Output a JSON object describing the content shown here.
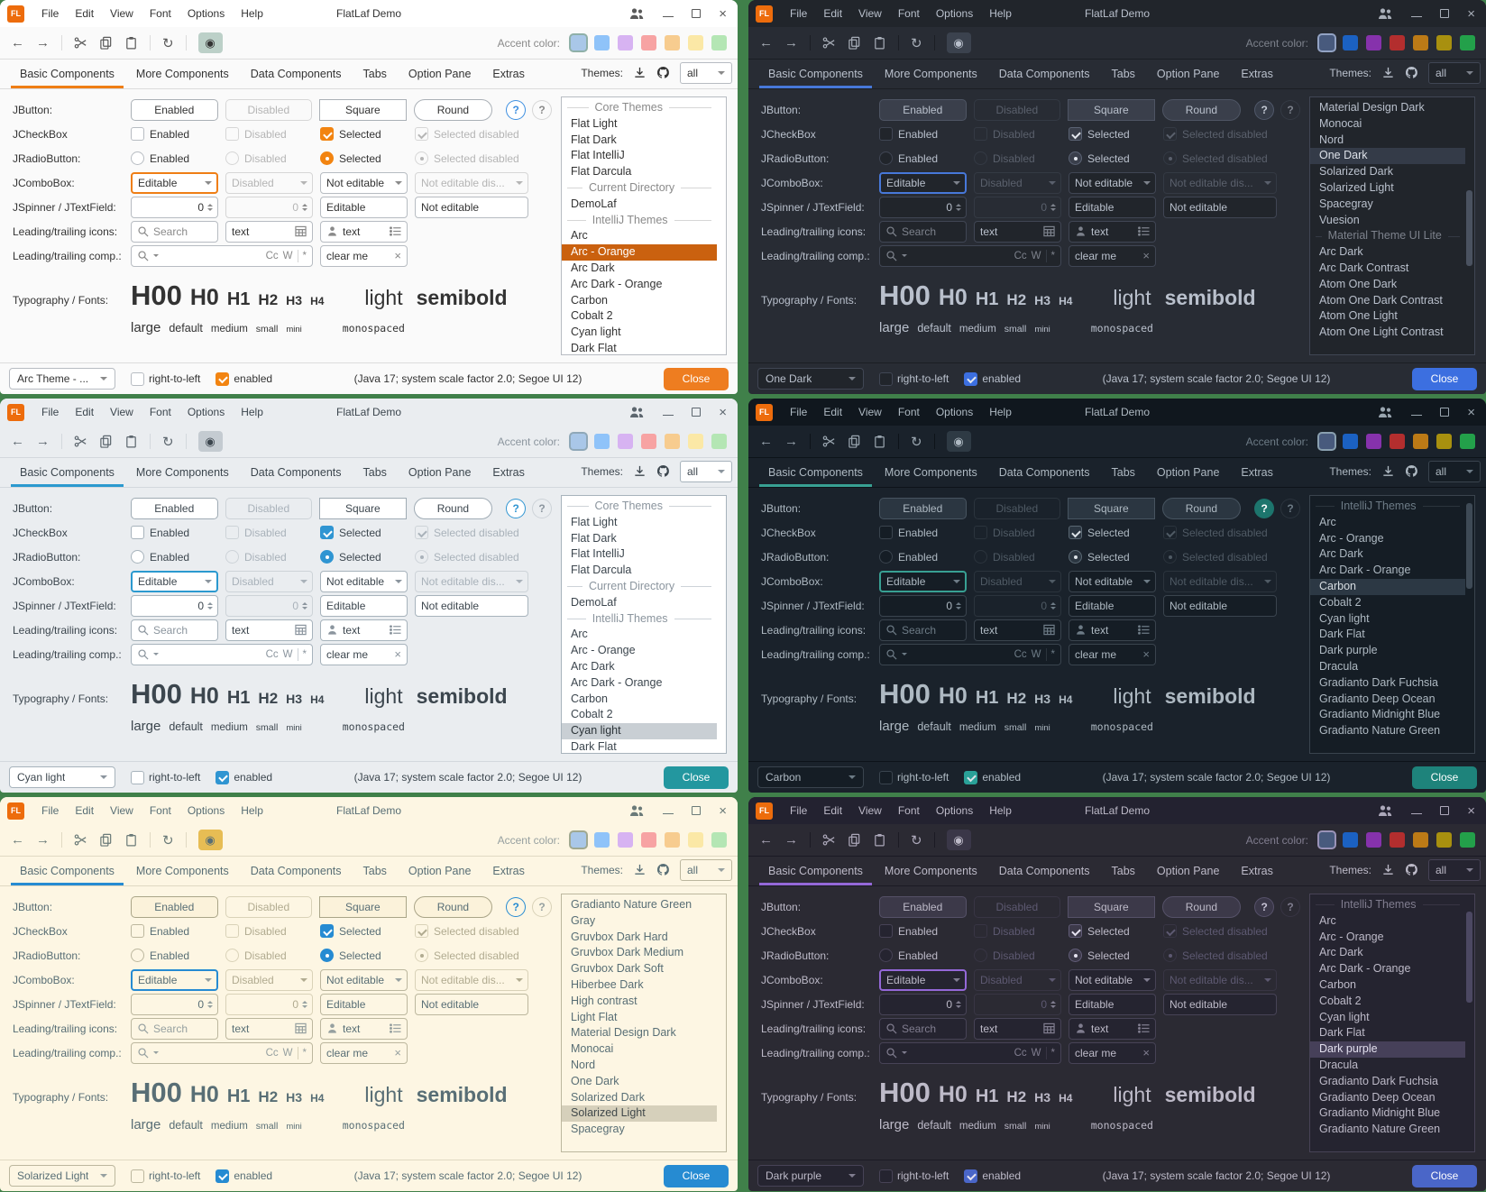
{
  "shared": {
    "titlebar": {
      "logo": "FL",
      "title": "FlatLaf Demo",
      "menus": [
        "File",
        "Edit",
        "View",
        "Font",
        "Options",
        "Help"
      ]
    },
    "toolbar": {
      "accent_label": "Accent color:"
    },
    "tabbar": {
      "tabs": [
        "Basic Components",
        "More Components",
        "Data Components",
        "Tabs",
        "Option Pane",
        "Extras"
      ],
      "themes_label": "Themes:",
      "filter_value": "all"
    },
    "rows": {
      "labels": [
        "JButton:",
        "JCheckBox",
        "JRadioButton:",
        "JComboBox:",
        "JSpinner / JTextField:",
        "Leading/trailing icons:",
        "Leading/trailing comp.:",
        "Typography / Fonts:"
      ],
      "jbutton": [
        "Enabled",
        "Disabled",
        "Square",
        "Round",
        "?",
        "?"
      ],
      "jcheckbox": [
        "Enabled",
        "Disabled",
        "Selected",
        "Selected disabled"
      ],
      "jradiobutton": [
        "Enabled",
        "Disabled",
        "Selected",
        "Selected disabled"
      ],
      "jcombobox": [
        "Editable",
        "Disabled",
        "Not editable",
        "Not editable dis..."
      ],
      "jspinner": [
        "0",
        "0",
        "Editable",
        "Not editable"
      ],
      "icons_row": {
        "search_placeholder": "Search",
        "text1": "text",
        "text2": "text"
      },
      "comp_row": {
        "match_case": "Cc",
        "whole_word": "W",
        "regex": "*",
        "clear_value": "clear me"
      }
    },
    "typography": {
      "headings": [
        "H00",
        "H0",
        "H1",
        "H2",
        "H3",
        "H4"
      ],
      "light": "light",
      "semibold": "semibold",
      "sizes": [
        "large",
        "default",
        "medium",
        "small",
        "mini"
      ],
      "monospaced": "monospaced"
    },
    "statusbar": {
      "rtl_label": "right-to-left",
      "enabled_label": "enabled",
      "status": "(Java 17;  system scale factor 2.0; Segoe UI 12)",
      "close_label": "Close"
    }
  },
  "windows": [
    {
      "theme_dropdown": "Arc Theme - ...",
      "accent_swatches": [
        "#a9c7e8",
        "#8fc3f9",
        "#d7b3f2",
        "#f7a3a3",
        "#f7cc8f",
        "#fbe8a6",
        "#b4e6b4"
      ],
      "scrollbar": null,
      "themes_list": [
        {
          "sep": true,
          "label": "Core Themes"
        },
        {
          "label": "Flat Light"
        },
        {
          "label": "Flat Dark"
        },
        {
          "label": "Flat IntelliJ"
        },
        {
          "label": "Flat Darcula"
        },
        {
          "sep": true,
          "label": "Current Directory"
        },
        {
          "label": "DemoLaf"
        },
        {
          "sep": true,
          "label": "IntelliJ Themes"
        },
        {
          "label": "Arc"
        },
        {
          "label": "Arc - Orange",
          "selected": true
        },
        {
          "label": "Arc Dark"
        },
        {
          "label": "Arc Dark - Orange"
        },
        {
          "label": "Carbon"
        },
        {
          "label": "Cobalt 2"
        },
        {
          "label": "Cyan light"
        },
        {
          "label": "Dark Flat"
        }
      ],
      "colors": {
        "frame": "#ffffff",
        "bg": "#fafafa",
        "fg": "#333333",
        "muted": "#8a8a8a",
        "border": "#dcdcdc",
        "field_bg": "#ffffff",
        "field_border": "#b7bcc2",
        "dis_border": "#d6d6d6",
        "disabled_fg": "#b5b5b5",
        "accent": "#ef7e15",
        "btn_bg": "#ffffff",
        "btn_border": "#aab0b6",
        "list_bg": "#ffffff",
        "sel_bg": "#ca610f",
        "sel_fg": "#ffffff",
        "close_bg": "#ee7d20",
        "close_fg": "#ffffff",
        "eye_bg": "#bcd0c8",
        "scroll_thumb": "#dadada",
        "check_bg": "#f28411",
        "check_mark": "#ffffff",
        "check_border": "#f28411",
        "swatch_sel_border": "#8fb0a8",
        "help_fg": "#3d8fe0",
        "help_border": "#3d8fe0",
        "help_bg": "#ffffff",
        "status_check": "#f28411",
        "tool_fg": "#5a5a5a"
      }
    },
    {
      "theme_dropdown": "One Dark",
      "accent_swatches": [
        "#485a7d",
        "#1b61c2",
        "#8632ac",
        "#b32e2e",
        "#bc7a16",
        "#a8900f",
        "#23a04a"
      ],
      "scrollbar": {
        "top_pct": 36,
        "height_pct": 30
      },
      "themes_list": [
        {
          "label": "Material Design Dark"
        },
        {
          "label": "Monocai"
        },
        {
          "label": "Nord"
        },
        {
          "label": "One Dark",
          "selected": true
        },
        {
          "label": "Solarized Dark"
        },
        {
          "label": "Solarized Light"
        },
        {
          "label": "Spacegray"
        },
        {
          "label": "Vuesion"
        },
        {
          "sep": true,
          "label": "Material Theme UI Lite"
        },
        {
          "label": "Arc Dark"
        },
        {
          "label": "Arc Dark Contrast"
        },
        {
          "label": "Atom One Dark"
        },
        {
          "label": "Atom One Dark Contrast"
        },
        {
          "label": "Atom One Light"
        },
        {
          "label": "Atom One Light Contrast"
        }
      ],
      "colors": {
        "frame": "#21252b",
        "bg": "#282c34",
        "fg": "#b9c0cc",
        "muted": "#7d828c",
        "border": "#1b1e24",
        "field_bg": "#21252b",
        "field_border": "#404654",
        "dis_border": "#343a44",
        "disabled_fg": "#5a606c",
        "accent": "#4778d9",
        "btn_bg": "#3a3f4b",
        "btn_border": "#4e5564",
        "list_bg": "#21252b",
        "sel_bg": "#343b48",
        "sel_fg": "#dde1e8",
        "close_bg": "#3c6fe0",
        "close_fg": "#ffffff",
        "eye_bg": "#3b424e",
        "scroll_thumb": "#4a5260",
        "check_bg": "#3a3f4b",
        "check_mark": "#e4e8ee",
        "check_border": "#5b6374",
        "swatch_sel_border": "#93a3c4",
        "help_fg": "#c3c9d4",
        "help_border": "#50586a",
        "help_bg": "#363c48",
        "status_check": "#3c6fe0",
        "tool_fg": "#a8aeb8"
      }
    },
    {
      "theme_dropdown": "Cyan light",
      "accent_swatches": [
        "#a9c7e8",
        "#8fc3f9",
        "#d7b3f2",
        "#f7a3a3",
        "#f7cc8f",
        "#fbe8a6",
        "#b4e6b4"
      ],
      "scrollbar": null,
      "themes_list": [
        {
          "sep": true,
          "label": "Core Themes"
        },
        {
          "label": "Flat Light"
        },
        {
          "label": "Flat Dark"
        },
        {
          "label": "Flat IntelliJ"
        },
        {
          "label": "Flat Darcula"
        },
        {
          "sep": true,
          "label": "Current Directory"
        },
        {
          "label": "DemoLaf"
        },
        {
          "sep": true,
          "label": "IntelliJ Themes"
        },
        {
          "label": "Arc"
        },
        {
          "label": "Arc - Orange"
        },
        {
          "label": "Arc Dark"
        },
        {
          "label": "Arc Dark - Orange"
        },
        {
          "label": "Carbon"
        },
        {
          "label": "Cobalt 2"
        },
        {
          "label": "Cyan light",
          "selected": true
        },
        {
          "label": "Dark Flat"
        }
      ],
      "colors": {
        "frame": "#eaedf0",
        "bg": "#eaedf0",
        "fg": "#3c464e",
        "muted": "#8b959e",
        "border": "#d3d8dd",
        "field_bg": "#ffffff",
        "field_border": "#a7b3bc",
        "dis_border": "#cdd3d8",
        "disabled_fg": "#a9b2ba",
        "accent": "#2b99cf",
        "btn_bg": "#ffffff",
        "btn_border": "#9fabb4",
        "list_bg": "#ffffff",
        "sel_bg": "#c9cfd4",
        "sel_fg": "#2b3338",
        "close_bg": "#23979f",
        "close_fg": "#ffffff",
        "eye_bg": "#c4cbd1",
        "scroll_thumb": "#ccd2d7",
        "check_bg": "#2f95d2",
        "check_mark": "#ffffff",
        "check_border": "#2f95d2",
        "swatch_sel_border": "#8fa8b8",
        "help_fg": "#2f95d2",
        "help_border": "#2f95d2",
        "help_bg": "#ffffff",
        "status_check": "#2f95d2",
        "tool_fg": "#5c666e"
      }
    },
    {
      "theme_dropdown": "Carbon",
      "accent_swatches": [
        "#485a7d",
        "#1b61c2",
        "#8632ac",
        "#b32e2e",
        "#bc7a16",
        "#a8900f",
        "#23a04a"
      ],
      "scrollbar": {
        "top_pct": 2,
        "height_pct": 34
      },
      "themes_list": [
        {
          "sep": true,
          "label": "IntelliJ Themes"
        },
        {
          "label": "Arc"
        },
        {
          "label": "Arc - Orange"
        },
        {
          "label": "Arc Dark"
        },
        {
          "label": "Arc Dark - Orange"
        },
        {
          "label": "Carbon",
          "selected": true
        },
        {
          "label": "Cobalt 2"
        },
        {
          "label": "Cyan light"
        },
        {
          "label": "Dark Flat"
        },
        {
          "label": "Dark purple"
        },
        {
          "label": "Dracula"
        },
        {
          "label": "Gradianto Dark Fuchsia"
        },
        {
          "label": "Gradianto Deep Ocean"
        },
        {
          "label": "Gradianto Midnight Blue"
        },
        {
          "label": "Gradianto Nature Green"
        }
      ],
      "colors": {
        "frame": "#10171e",
        "bg": "#1a222b",
        "fg": "#aeb9c2",
        "muted": "#6d7b86",
        "border": "#0d1319",
        "field_bg": "#151d25",
        "field_border": "#3a444e",
        "dis_border": "#2b343d",
        "disabled_fg": "#4f5a64",
        "accent": "#38a093",
        "btn_bg": "#2b3641",
        "btn_border": "#475460",
        "list_bg": "#151d25",
        "sel_bg": "#2c3844",
        "sel_fg": "#d8dee3",
        "close_bg": "#1e837b",
        "close_fg": "#ffffff",
        "eye_bg": "#2e3a44",
        "scroll_thumb": "#3e4a56",
        "check_bg": "#2b3641",
        "check_mark": "#dde3e8",
        "check_border": "#5a6873",
        "swatch_sel_border": "#8aa0b0",
        "help_fg": "#ffffff",
        "help_border": "#1d756d",
        "help_bg": "#1d756d",
        "status_check": "#2aa198",
        "tool_fg": "#9aa6b0"
      }
    },
    {
      "theme_dropdown": "Solarized Light",
      "accent_swatches": [
        "#a9c7e8",
        "#8fc3f9",
        "#d7b3f2",
        "#f7a3a3",
        "#f7cc8f",
        "#fbe8a6",
        "#b4e6b4"
      ],
      "scrollbar": null,
      "themes_list": [
        {
          "label": "Gradianto Nature Green"
        },
        {
          "label": "Gray"
        },
        {
          "label": "Gruvbox Dark Hard"
        },
        {
          "label": "Gruvbox Dark Medium"
        },
        {
          "label": "Gruvbox Dark Soft"
        },
        {
          "label": "Hiberbee Dark"
        },
        {
          "label": "High contrast"
        },
        {
          "label": "Light Flat"
        },
        {
          "label": "Material Design Dark"
        },
        {
          "label": "Monocai"
        },
        {
          "label": "Nord"
        },
        {
          "label": "One Dark"
        },
        {
          "label": "Solarized Dark"
        },
        {
          "label": "Solarized Light",
          "selected": true
        },
        {
          "label": "Spacegray"
        }
      ],
      "colors": {
        "frame": "#fdf6e3",
        "bg": "#fdf6e3",
        "fg": "#586e75",
        "muted": "#96a0a0",
        "border": "#e0d9c3",
        "field_bg": "#fdf6e3",
        "field_border": "#bcb79e",
        "dis_border": "#d9d2b8",
        "disabled_fg": "#b1ab90",
        "accent": "#268bd2",
        "btn_bg": "#fbf2da",
        "btn_border": "#aaa588",
        "list_bg": "#fdf6e3",
        "sel_bg": "#d6d0bb",
        "sel_fg": "#40484a",
        "close_bg": "#268bd2",
        "close_fg": "#ffffff",
        "eye_bg": "#e7bd54",
        "scroll_thumb": "#d6cfb4",
        "check_bg": "#268bd2",
        "check_mark": "#ffffff",
        "check_border": "#268bd2",
        "swatch_sel_border": "#a0a890",
        "help_fg": "#268bd2",
        "help_border": "#268bd2",
        "help_bg": "#fdf6e3",
        "status_check": "#268bd2",
        "tool_fg": "#6a7a78"
      }
    },
    {
      "theme_dropdown": "Dark purple",
      "accent_swatches": [
        "#485a7d",
        "#1b61c2",
        "#8632ac",
        "#b32e2e",
        "#bc7a16",
        "#a8900f",
        "#23a04a"
      ],
      "scrollbar": {
        "top_pct": 6,
        "height_pct": 36
      },
      "themes_list": [
        {
          "sep": true,
          "label": "IntelliJ Themes"
        },
        {
          "label": "Arc"
        },
        {
          "label": "Arc - Orange"
        },
        {
          "label": "Arc Dark"
        },
        {
          "label": "Arc Dark - Orange"
        },
        {
          "label": "Carbon"
        },
        {
          "label": "Cobalt 2"
        },
        {
          "label": "Cyan light"
        },
        {
          "label": "Dark Flat"
        },
        {
          "label": "Dark purple",
          "selected": true
        },
        {
          "label": "Dracula"
        },
        {
          "label": "Gradianto Dark Fuchsia"
        },
        {
          "label": "Gradianto Deep Ocean"
        },
        {
          "label": "Gradianto Midnight Blue"
        },
        {
          "label": "Gradianto Nature Green"
        }
      ],
      "colors": {
        "frame": "#232230",
        "bg": "#2b2a33",
        "fg": "#bdbac8",
        "muted": "#807d8f",
        "border": "#1b1a24",
        "field_bg": "#252430",
        "field_border": "#474356",
        "dis_border": "#383544",
        "disabled_fg": "#5d5971",
        "accent": "#9468d8",
        "btn_bg": "#3c3949",
        "btn_border": "#555168",
        "list_bg": "#252430",
        "sel_bg": "#464059",
        "sel_fg": "#e3e0ef",
        "close_bg": "#4a66c8",
        "close_fg": "#ffffff",
        "eye_bg": "#3a3748",
        "scroll_thumb": "#4c4862",
        "check_bg": "#3c3949",
        "check_mark": "#e6e3f0",
        "check_border": "#625d78",
        "swatch_sel_border": "#9a93b8",
        "help_fg": "#c8c4d6",
        "help_border": "#56516a",
        "help_bg": "#3a3748",
        "status_check": "#4a66c8",
        "tool_fg": "#aca8ba"
      }
    }
  ]
}
